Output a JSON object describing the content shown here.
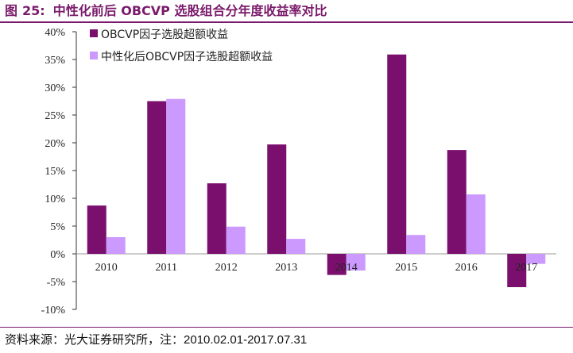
{
  "figure": {
    "label": "图",
    "number": "25:",
    "title": "中性化前后 OBCVP 选股组合分年度收益率对比"
  },
  "source": {
    "prefix": "资料来源：光大证券研究所，注：",
    "note": "2010.02.01-2017.07.31"
  },
  "colors": {
    "title": "#7a1a6a",
    "series1": "#7b0f6e",
    "series2": "#cc99ff"
  },
  "chart_data": {
    "type": "bar",
    "categories": [
      "2010",
      "2011",
      "2012",
      "2013",
      "2014",
      "2015",
      "2016",
      "2017"
    ],
    "series": [
      {
        "name": "OBCVP因子选股超额收益",
        "values": [
          8.7,
          27.5,
          12.7,
          19.7,
          -3.8,
          35.9,
          18.7,
          -6.0
        ]
      },
      {
        "name": "中性化后OBCVP因子选股超额收益",
        "values": [
          3.0,
          27.9,
          4.9,
          2.7,
          -3.0,
          3.4,
          10.7,
          -1.8
        ]
      }
    ],
    "yticks": [
      "40%",
      "35%",
      "30%",
      "25%",
      "20%",
      "15%",
      "10%",
      "5%",
      "0%",
      "-5%",
      "-10%"
    ],
    "ylim": [
      -10,
      40
    ],
    "legend_position": "top-left",
    "grid": false
  }
}
